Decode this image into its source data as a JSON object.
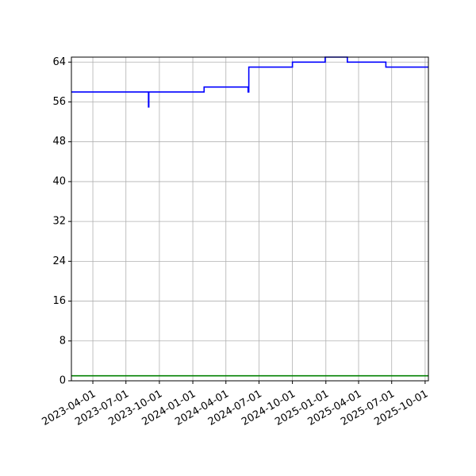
{
  "chart_data": {
    "type": "line",
    "title": "",
    "xlabel": "",
    "ylabel": "",
    "x_axis_type": "date",
    "xlim": [
      "2023-02-01",
      "2025-10-10"
    ],
    "ylim": [
      0,
      65
    ],
    "grid": true,
    "legend": "none",
    "x_ticks": [
      "2023-04-01",
      "2023-07-01",
      "2023-10-01",
      "2024-01-01",
      "2024-04-01",
      "2024-07-01",
      "2024-10-01",
      "2025-01-01",
      "2025-04-01",
      "2025-07-01",
      "2025-10-01"
    ],
    "y_ticks": [
      0,
      8,
      16,
      24,
      32,
      40,
      48,
      56,
      64
    ],
    "series": [
      {
        "color": "#0000ff",
        "shape": "step",
        "points": [
          {
            "x": "2023-02-01",
            "y": 58
          },
          {
            "x": "2023-09-01",
            "y": 58
          },
          {
            "x": "2023-09-01",
            "y": 55
          },
          {
            "x": "2023-09-02",
            "y": 55
          },
          {
            "x": "2023-09-02",
            "y": 58
          },
          {
            "x": "2024-02-01",
            "y": 58
          },
          {
            "x": "2024-02-01",
            "y": 59
          },
          {
            "x": "2024-06-01",
            "y": 59
          },
          {
            "x": "2024-06-01",
            "y": 58
          },
          {
            "x": "2024-06-03",
            "y": 58
          },
          {
            "x": "2024-06-03",
            "y": 63
          },
          {
            "x": "2024-10-01",
            "y": 63
          },
          {
            "x": "2024-10-01",
            "y": 64
          },
          {
            "x": "2024-12-30",
            "y": 64
          },
          {
            "x": "2024-12-30",
            "y": 65
          },
          {
            "x": "2025-03-01",
            "y": 65
          },
          {
            "x": "2025-03-01",
            "y": 64
          },
          {
            "x": "2025-06-15",
            "y": 64
          },
          {
            "x": "2025-06-15",
            "y": 63
          },
          {
            "x": "2025-10-10",
            "y": 63
          }
        ]
      },
      {
        "color": "#008000",
        "shape": "line",
        "points": [
          {
            "x": "2023-02-01",
            "y": 1
          },
          {
            "x": "2025-10-10",
            "y": 1
          }
        ]
      }
    ]
  }
}
